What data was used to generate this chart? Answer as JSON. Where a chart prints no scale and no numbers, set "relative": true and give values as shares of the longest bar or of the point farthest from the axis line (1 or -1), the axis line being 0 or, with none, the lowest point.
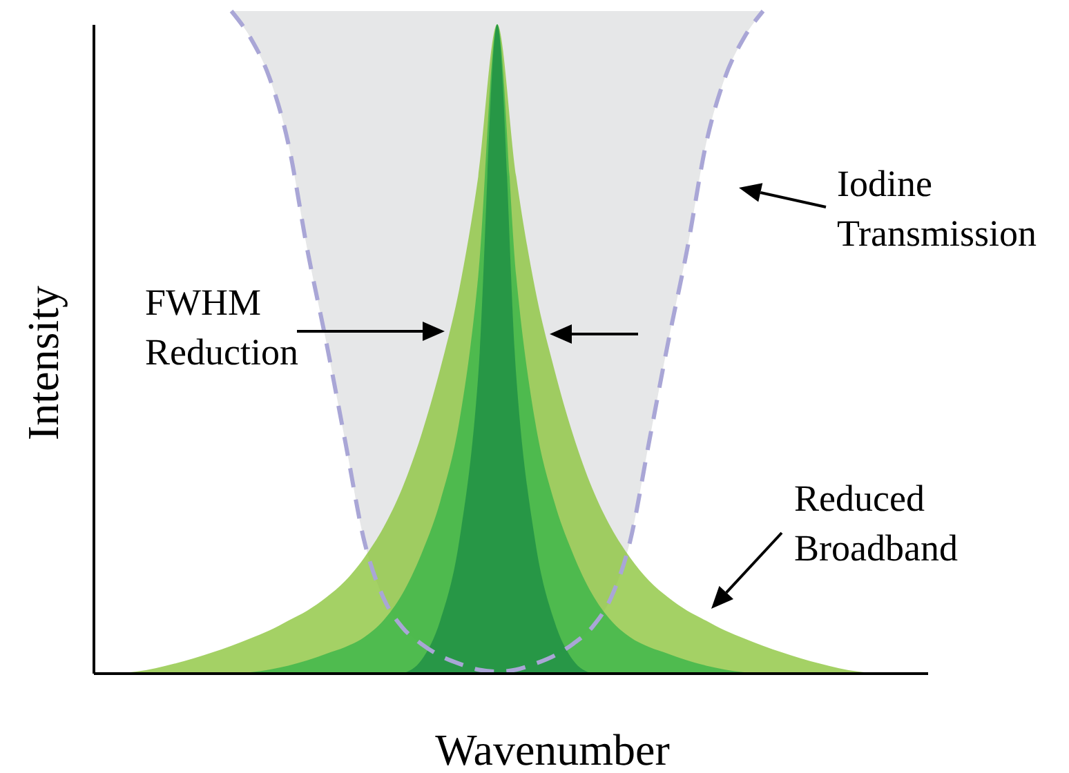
{
  "chart_data": {
    "type": "area",
    "relative": true,
    "xlabel": "Wavenumber",
    "ylabel": "Intensity",
    "categories": [
      null,
      null,
      null,
      null,
      null,
      null,
      null,
      null,
      null,
      null,
      null,
      null,
      null,
      null,
      null,
      null,
      null,
      null,
      null,
      null,
      null,
      null,
      null,
      null,
      null,
      null,
      null,
      null,
      null,
      null,
      null,
      null,
      null,
      null,
      null,
      null,
      null,
      null,
      null,
      null,
      null
    ],
    "series": [
      {
        "type": "line",
        "color": "#a9a6d6",
        "line_style": "dashed",
        "values": [
          null,
          null,
          null,
          null,
          null,
          null,
          1,
          0.96,
          0.9,
          0.8,
          0.64,
          0.5,
          0.35,
          0.2,
          0.115,
          0.07,
          0.045,
          0.027,
          0.015,
          0.006,
          0.003,
          0.006,
          0.015,
          0.027,
          0.045,
          0.07,
          0.115,
          0.2,
          0.35,
          0.5,
          0.64,
          0.8,
          0.9,
          0.96,
          1,
          null,
          null,
          null,
          null,
          null,
          null
        ]
      },
      {
        "color": "#8dc63f",
        "values": [
          0,
          0.003,
          0.008,
          0.015,
          0.023,
          0.032,
          0.042,
          0.053,
          0.065,
          0.08,
          0.095,
          0.115,
          0.14,
          0.175,
          0.22,
          0.28,
          0.36,
          0.46,
          0.58,
          0.75,
          0.98,
          0.75,
          0.58,
          0.46,
          0.36,
          0.28,
          0.22,
          0.175,
          0.14,
          0.115,
          0.095,
          0.08,
          0.065,
          0.053,
          0.042,
          0.032,
          0.023,
          0.015,
          0.008,
          0.003,
          0
        ]
      },
      {
        "color": "#39b54a",
        "values": [
          null,
          null,
          null,
          null,
          null,
          null,
          0,
          0.002,
          0.006,
          0.012,
          0.02,
          0.03,
          0.04,
          0.055,
          0.08,
          0.12,
          0.18,
          0.26,
          0.38,
          0.6,
          0.98,
          0.6,
          0.38,
          0.26,
          0.18,
          0.12,
          0.08,
          0.055,
          0.04,
          0.03,
          0.02,
          0.012,
          0.006,
          0.002,
          0,
          null,
          null,
          null,
          null,
          null,
          null
        ]
      },
      {
        "color": "#1e8f45",
        "values": [
          null,
          null,
          null,
          null,
          null,
          null,
          null,
          null,
          null,
          null,
          null,
          null,
          null,
          null,
          null,
          0,
          0.02,
          0.08,
          0.2,
          0.45,
          0.98,
          0.45,
          0.2,
          0.08,
          0.02,
          0,
          null,
          null,
          null,
          null,
          null,
          null,
          null,
          null,
          null,
          null,
          null,
          null,
          null,
          null,
          null
        ]
      }
    ],
    "annotations": [
      "Iodine Transmission",
      "FWHM Reduction",
      "Reduced Broadband"
    ]
  }
}
